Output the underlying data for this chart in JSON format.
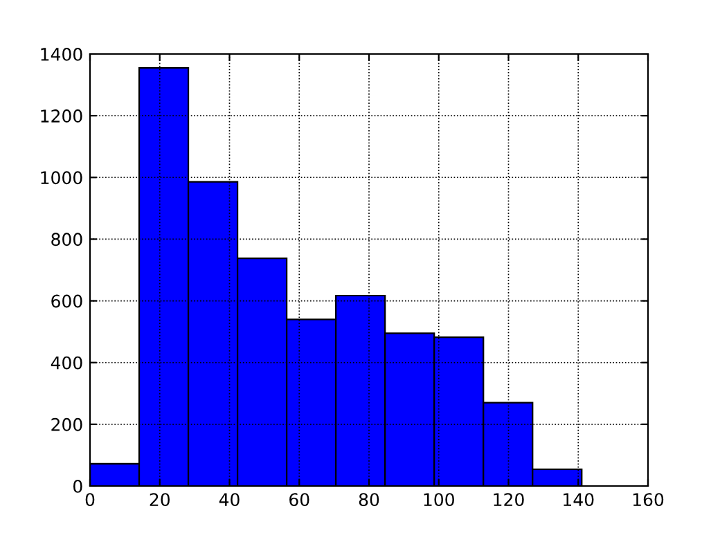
{
  "chart_data": {
    "type": "histogram",
    "bins": [
      0,
      14.1,
      28.2,
      42.3,
      56.4,
      70.5,
      84.6,
      98.7,
      112.8,
      126.9,
      141
    ],
    "values": [
      72,
      1355,
      986,
      738,
      540,
      617,
      495,
      482,
      270,
      54
    ],
    "color": "#0000ff",
    "xlim": [
      0,
      160
    ],
    "xticks": [
      0,
      20,
      40,
      60,
      80,
      100,
      120,
      140,
      160
    ],
    "ylim": [
      0,
      1400
    ],
    "yticks": [
      0,
      200,
      400,
      600,
      800,
      1000,
      1200,
      1400
    ],
    "grid": true
  }
}
